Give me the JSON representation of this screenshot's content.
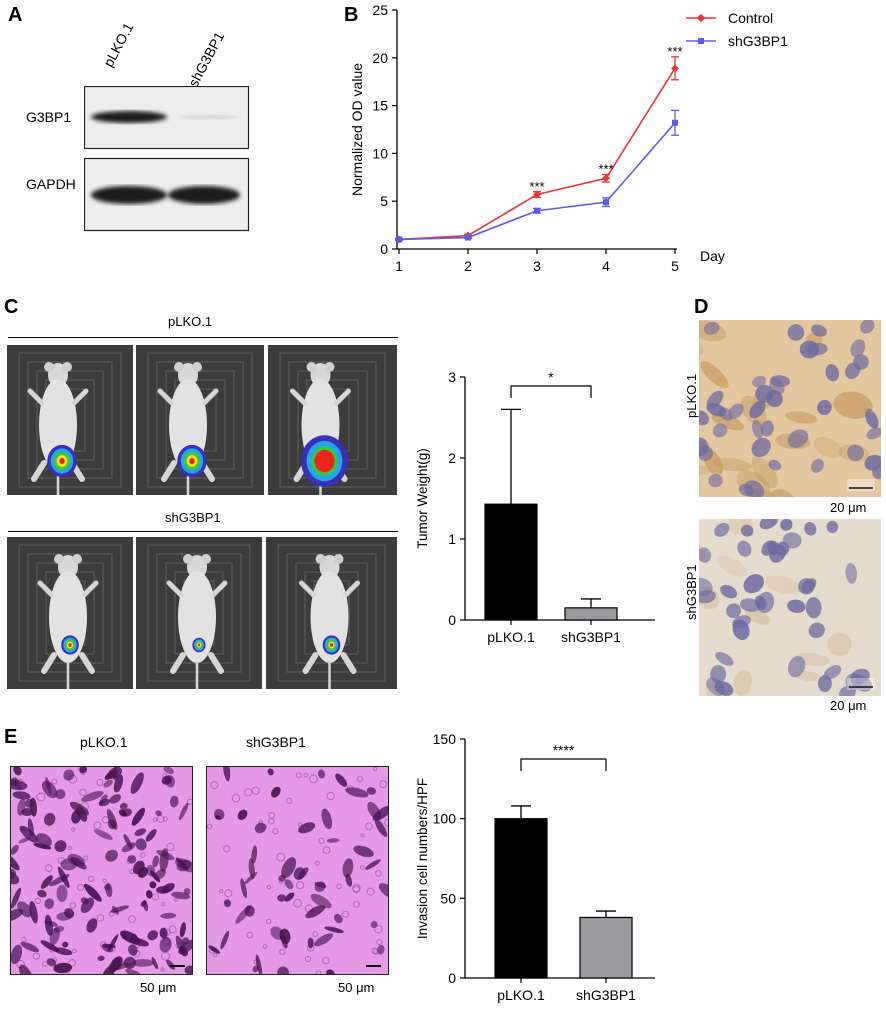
{
  "panels": {
    "a": "A",
    "b": "B",
    "c": "C",
    "d": "D",
    "e": "E"
  },
  "panel_a": {
    "lane_labels": [
      "pLKO.1",
      "shG3BP1"
    ],
    "row_labels": [
      "G3BP1",
      "GAPDH"
    ]
  },
  "panel_c": {
    "group1_label": "pLKO.1",
    "group2_label": "shG3BP1"
  },
  "panel_d": {
    "row_labels": [
      "pLKO.1",
      "shG3BP1"
    ],
    "scale_labels": [
      "20 μm",
      "20 μm"
    ]
  },
  "panel_e": {
    "image_titles": [
      "pLKO.1",
      "shG3BP1"
    ],
    "scale_labels": [
      "50 μm",
      "50 μm"
    ]
  },
  "colors": {
    "control": "#e8343b",
    "shg3bp1": "#5b5ce6",
    "bar_black": "#000000",
    "bar_gray": "#9a9a9e"
  },
  "chart_data": [
    {
      "id": "B",
      "type": "line",
      "x": [
        1,
        2,
        3,
        4,
        5
      ],
      "xlabel": "Day",
      "ylabel": "Normalized OD value",
      "ylim": [
        0,
        25
      ],
      "yticks": [
        0,
        5,
        10,
        15,
        20,
        25
      ],
      "xticks": [
        1,
        2,
        3,
        4,
        5
      ],
      "legend": "top-right",
      "series": [
        {
          "name": "Control",
          "values": [
            1.0,
            1.4,
            5.7,
            7.4,
            18.9
          ],
          "errors": [
            0.1,
            0.15,
            0.3,
            0.4,
            1.2
          ]
        },
        {
          "name": "shG3BP1",
          "values": [
            1.0,
            1.2,
            4.0,
            4.9,
            13.2
          ],
          "errors": [
            0.1,
            0.1,
            0.25,
            0.45,
            1.3
          ]
        }
      ],
      "annotations": [
        {
          "x": 3,
          "y": 6.5,
          "text": "***"
        },
        {
          "x": 4,
          "y": 8.3,
          "text": "***"
        },
        {
          "x": 5,
          "y": 20.6,
          "text": "***"
        }
      ]
    },
    {
      "id": "C",
      "type": "bar",
      "categories": [
        "pLKO.1",
        "shG3BP1"
      ],
      "values": [
        1.43,
        0.15
      ],
      "errors": [
        1.17,
        0.11
      ],
      "ylabel": "Tumor Weight(g)",
      "ylim": [
        0,
        3
      ],
      "yticks": [
        0,
        1,
        2,
        3
      ],
      "significance": "*"
    },
    {
      "id": "E",
      "type": "bar",
      "categories": [
        "pLKO.1",
        "shG3BP1"
      ],
      "values": [
        100,
        38
      ],
      "errors": [
        8,
        4
      ],
      "ylabel": "Invasion cell numbers/HPF",
      "ylim": [
        0,
        150
      ],
      "yticks": [
        0,
        50,
        100,
        150
      ],
      "significance": "****"
    }
  ]
}
